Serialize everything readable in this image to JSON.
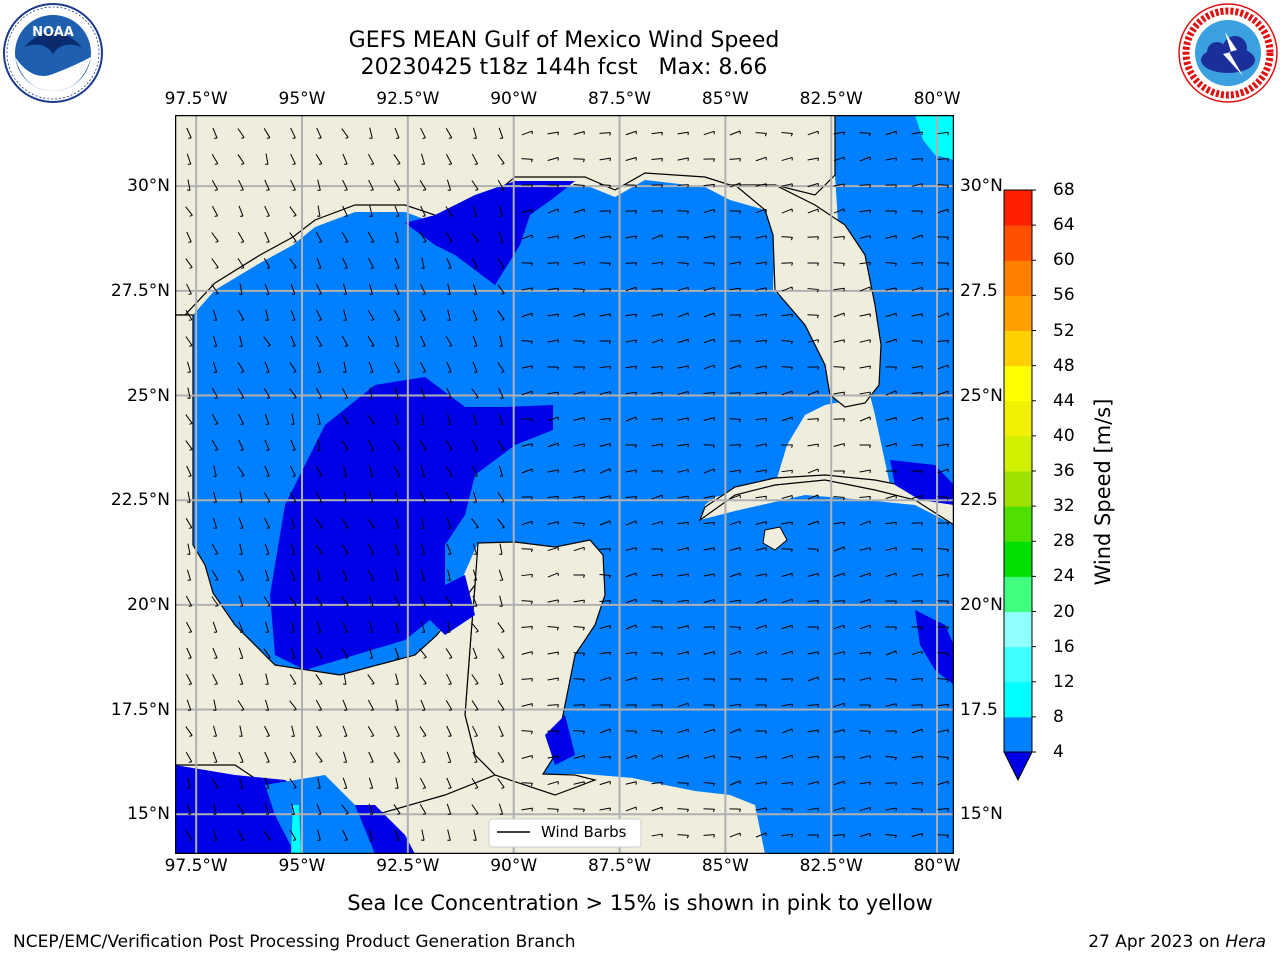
{
  "header": {
    "title_line1": "GEFS MEAN Gulf of Mexico Wind Speed",
    "title_line2": "20230425 t18z 144h fcst   Max: 8.66"
  },
  "logos": {
    "left": "noaa-logo",
    "right": "national-weather-service-logo"
  },
  "map": {
    "lon_ticks": [
      "97.5°W",
      "95°W",
      "92.5°W",
      "90°W",
      "87.5°W",
      "85°W",
      "82.5°W",
      "80°W"
    ],
    "lat_ticks": [
      "30°N",
      "27.5°N",
      "25°N",
      "22.5°N",
      "20°N",
      "17.5°N",
      "15°N"
    ],
    "lat_ticks_right": [
      "30°N",
      "27.5",
      "25°N",
      "22.5",
      "20°N",
      "17.5",
      "15°N"
    ],
    "lon_range": [
      -98.0,
      -79.6
    ],
    "lat_range": [
      14.05,
      31.7
    ],
    "legend_label": "Wind Barbs",
    "colors": {
      "land": "#efeedd",
      "ocean_4_8": "#0080ff",
      "ocean_lt4": "#0000e8",
      "ocean_8_12": "#00ffff",
      "grid": "#b0b0b0"
    }
  },
  "colorbar": {
    "label": "Wind Speed [m/s]",
    "levels": [
      "4",
      "8",
      "12",
      "16",
      "20",
      "24",
      "28",
      "32",
      "36",
      "40",
      "44",
      "48",
      "52",
      "56",
      "60",
      "64",
      "68"
    ],
    "colors": [
      "#0080ff",
      "#00ffff",
      "#40ffff",
      "#90ffff",
      "#40ff80",
      "#00e000",
      "#50e000",
      "#a0e000",
      "#d0f000",
      "#f0f000",
      "#ffff00",
      "#ffd000",
      "#ffa000",
      "#ff8000",
      "#ff5000",
      "#ff2000"
    ],
    "under_color": "#0000e8"
  },
  "footer": {
    "note": "Sea Ice Concentration > 15% is shown in pink to yellow",
    "left": "NCEP/EMC/Verification Post Processing Product Generation Branch",
    "right_prefix": "27 Apr 2023 on ",
    "right_host": "Hera"
  }
}
